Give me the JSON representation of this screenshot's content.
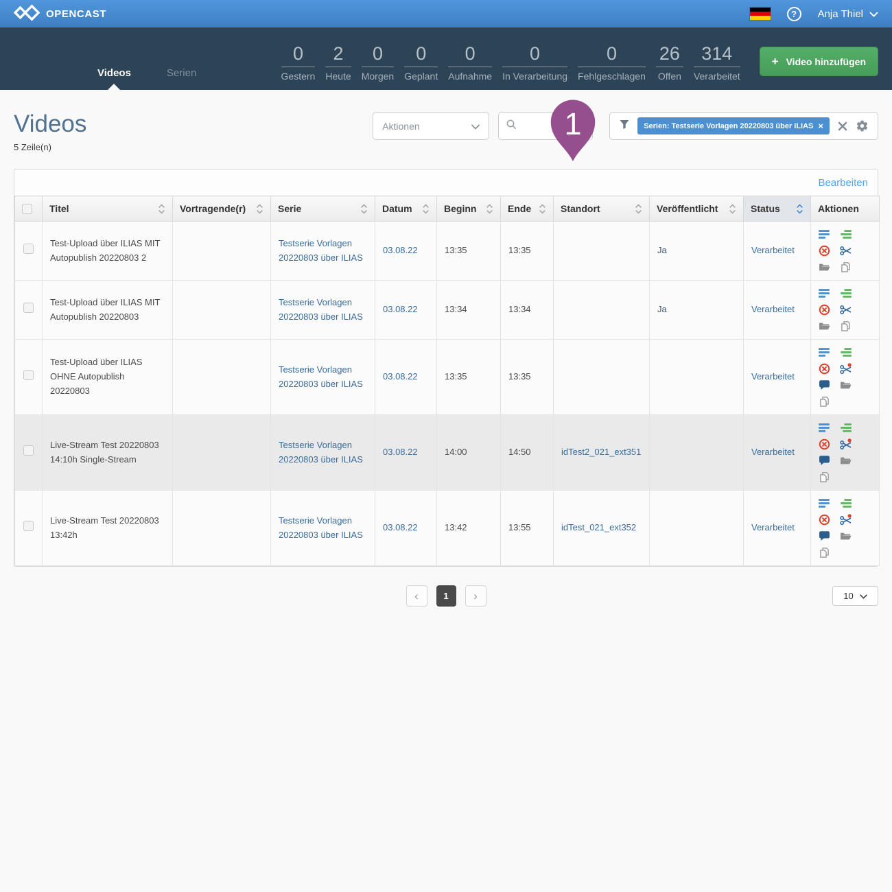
{
  "topbar": {
    "brand": "OPENCAST",
    "help_label": "?",
    "user_name": "Anja Thiel"
  },
  "nav": {
    "tabs": [
      {
        "label": "Videos",
        "active": true
      },
      {
        "label": "Serien",
        "active": false
      }
    ],
    "stats": [
      {
        "value": "0",
        "label": "Gestern"
      },
      {
        "value": "2",
        "label": "Heute"
      },
      {
        "value": "0",
        "label": "Morgen"
      },
      {
        "value": "0",
        "label": "Geplant"
      },
      {
        "value": "0",
        "label": "Aufnahme"
      },
      {
        "value": "0",
        "label": "In Verarbeitung"
      },
      {
        "value": "0",
        "label": "Fehlgeschlagen"
      },
      {
        "value": "26",
        "label": "Offen"
      },
      {
        "value": "314",
        "label": "Verarbeitet"
      }
    ],
    "add_video_label": "Video hinzufügen"
  },
  "toolbar": {
    "title": "Videos",
    "row_count": "5 Zeile(n)",
    "actions_placeholder": "Aktionen",
    "search_value": "",
    "filter_chip": "Serien: Testserie Vorlagen 20220803 über ILIAS"
  },
  "marker": {
    "label": "1"
  },
  "table": {
    "edit_link": "Bearbeiten",
    "columns": [
      {
        "label": "",
        "checkbox": true,
        "sortable": false
      },
      {
        "label": "Titel",
        "sortable": true
      },
      {
        "label": "Vortragende(r)",
        "sortable": true
      },
      {
        "label": "Serie",
        "sortable": true
      },
      {
        "label": "Datum",
        "sortable": true
      },
      {
        "label": "Beginn",
        "sortable": true
      },
      {
        "label": "Ende",
        "sortable": true
      },
      {
        "label": "Standort",
        "sortable": true
      },
      {
        "label": "Veröffentlicht",
        "sortable": true
      },
      {
        "label": "Status",
        "sortable": true,
        "sorted": true
      },
      {
        "label": "Aktionen",
        "sortable": false
      }
    ],
    "rows": [
      {
        "title": "Test-Upload über ILIAS MIT Autopublish 20220803 2",
        "presenter": "",
        "series": "Testserie Vorlagen 20220803 über ILIAS",
        "date": "03.08.22",
        "start": "13:35",
        "end": "13:35",
        "location": "",
        "published": "Ja",
        "status": "Verarbeitet",
        "actions": [
          "details",
          "assets",
          "delete",
          "cut",
          "folder",
          "copy"
        ],
        "highlighted": false
      },
      {
        "title": "Test-Upload über ILIAS MIT Autopublish 20220803",
        "presenter": "",
        "series": "Testserie Vorlagen 20220803 über ILIAS",
        "date": "03.08.22",
        "start": "13:34",
        "end": "13:34",
        "location": "",
        "published": "Ja",
        "status": "Verarbeitet",
        "actions": [
          "details",
          "assets",
          "delete",
          "cut",
          "folder",
          "copy"
        ],
        "highlighted": false
      },
      {
        "title": "Test-Upload über ILIAS OHNE Autopublish 20220803",
        "presenter": "",
        "series": "Testserie Vorlagen 20220803 über ILIAS",
        "date": "03.08.22",
        "start": "13:35",
        "end": "13:35",
        "location": "",
        "published": "",
        "status": "Verarbeitet",
        "actions": [
          "details",
          "assets",
          "delete",
          "cut-alert",
          "comments",
          "folder",
          "copy"
        ],
        "highlighted": false
      },
      {
        "title": "Live-Stream Test 20220803 14:10h Single-Stream",
        "presenter": "",
        "series": "Testserie Vorlagen 20220803 über ILIAS",
        "date": "03.08.22",
        "start": "14:00",
        "end": "14:50",
        "location": "idTest2_021_ext351",
        "published": "",
        "status": "Verarbeitet",
        "actions": [
          "details",
          "assets",
          "delete",
          "cut-alert",
          "comments",
          "folder",
          "copy"
        ],
        "highlighted": true
      },
      {
        "title": "Live-Stream Test 20220803 13:42h",
        "presenter": "",
        "series": "Testserie Vorlagen 20220803 über ILIAS",
        "date": "03.08.22",
        "start": "13:42",
        "end": "13:55",
        "location": "idTest_021_ext352",
        "published": "",
        "status": "Verarbeitet",
        "actions": [
          "details",
          "assets",
          "delete",
          "cut-alert",
          "comments",
          "folder",
          "copy"
        ],
        "highlighted": false
      }
    ]
  },
  "pagination": {
    "prev": "‹",
    "current_page": "1",
    "next": "›",
    "page_size": "10"
  },
  "colors": {
    "chip_blue": "#4a90d2",
    "link_blue": "#3a6b99",
    "edit_link_blue": "#56a3ea",
    "button_green": "#53ae67",
    "marker_purple": "#964f8e",
    "delete_red": "#df432e",
    "assets_green": "#5cb85c",
    "details_blue": "#4a90d2",
    "scissors_blue": "#30699f",
    "comment_blue": "#2b5e8c",
    "gray_icon": "#8d8d8d"
  }
}
